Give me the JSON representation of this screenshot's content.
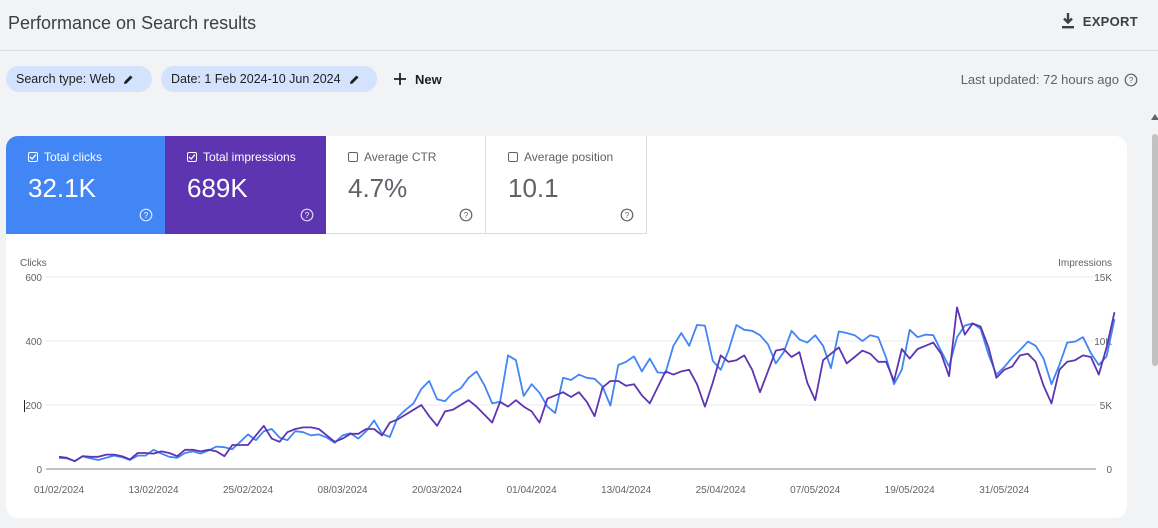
{
  "header": {
    "title": "Performance on Search results",
    "export_label": "EXPORT"
  },
  "filters": {
    "search_type": "Search type: Web",
    "date": "Date: 1 Feb 2024-10 Jun 2024",
    "new_label": "New",
    "last_updated": "Last updated: 72 hours ago"
  },
  "metrics": [
    {
      "label": "Total clicks",
      "value": "32.1K",
      "checked": true
    },
    {
      "label": "Total impressions",
      "value": "689K",
      "checked": true
    },
    {
      "label": "Average CTR",
      "value": "4.7%",
      "checked": false
    },
    {
      "label": "Average position",
      "value": "10.1",
      "checked": false
    }
  ],
  "colors": {
    "clicks": "#4285f4",
    "impressions": "#5e35b1",
    "accent_chip": "#d3e3fd"
  },
  "chart_data": {
    "type": "line",
    "ylabel_left": "Clicks",
    "ylabel_right": "Impressions",
    "y_left_ticks": [
      "0",
      "200",
      "400",
      "600"
    ],
    "y_right_ticks": [
      "0",
      "5K",
      "10K",
      "15K"
    ],
    "ylim_left": [
      0,
      600
    ],
    "ylim_right": [
      0,
      15000
    ],
    "x_ticks": [
      "01/02/2024",
      "13/02/2024",
      "25/02/2024",
      "08/03/2024",
      "20/03/2024",
      "01/04/2024",
      "13/04/2024",
      "25/04/2024",
      "07/05/2024",
      "19/05/2024",
      "31/05/2024"
    ],
    "x_start": "2024-02-01",
    "x_end": "2024-06-10",
    "grid": true,
    "series": [
      {
        "name": "Clicks",
        "axis": "left",
        "values": [
          35,
          33,
          25,
          40,
          33,
          28,
          35,
          42,
          37,
          28,
          42,
          42,
          60,
          48,
          38,
          35,
          50,
          55,
          48,
          58,
          70,
          68,
          62,
          85,
          108,
          90,
          118,
          125,
          98,
          90,
          118,
          115,
          105,
          108,
          98,
          82,
          105,
          112,
          95,
          118,
          152,
          110,
          100,
          162,
          185,
          205,
          250,
          275,
          218,
          212,
          238,
          252,
          285,
          305,
          262,
          205,
          210,
          355,
          340,
          228,
          265,
          238,
          195,
          175,
          285,
          278,
          295,
          285,
          282,
          258,
          198,
          325,
          335,
          352,
          305,
          345,
          302,
          300,
          385,
          425,
          385,
          450,
          448,
          338,
          310,
          370,
          450,
          435,
          432,
          418,
          390,
          330,
          365,
          432,
          405,
          395,
          418,
          385,
          315,
          430,
          425,
          418,
          400,
          418,
          412,
          348,
          265,
          310,
          435,
          412,
          420,
          418,
          368,
          320,
          412,
          448,
          455,
          438,
          358,
          295,
          318,
          348,
          372,
          398,
          385,
          345,
          265,
          325,
          395,
          398,
          412,
          362,
          325,
          352,
          468
        ]
      },
      {
        "name": "Impressions",
        "axis": "right",
        "values": [
          950,
          875,
          600,
          1000,
          950,
          950,
          1125,
          1125,
          1000,
          750,
          1250,
          1250,
          1200,
          1375,
          1250,
          1000,
          1500,
          1500,
          1375,
          1500,
          1375,
          1000,
          1875,
          1875,
          1875,
          2625,
          3375,
          2375,
          2125,
          2875,
          3125,
          3250,
          3250,
          3125,
          2625,
          2125,
          2375,
          2750,
          2750,
          3125,
          3125,
          2625,
          3625,
          3875,
          4250,
          4625,
          5000,
          4125,
          3375,
          4500,
          4625,
          5000,
          5375,
          4875,
          4250,
          3625,
          5250,
          4875,
          5375,
          4875,
          4500,
          3625,
          5500,
          5750,
          6000,
          5625,
          6000,
          5250,
          4125,
          6375,
          6875,
          6875,
          6500,
          6625,
          5750,
          5125,
          6375,
          7625,
          7375,
          7625,
          7750,
          6625,
          4875,
          6750,
          8875,
          8375,
          8500,
          8875,
          7750,
          6000,
          7625,
          9250,
          9375,
          8750,
          9125,
          6750,
          5375,
          8500,
          9000,
          9500,
          8250,
          8750,
          9250,
          9000,
          8375,
          8375,
          6875,
          9375,
          8625,
          9375,
          9625,
          9875,
          9000,
          7250,
          12625,
          10500,
          11375,
          11125,
          9500,
          7125,
          7750,
          8000,
          8875,
          9000,
          8375,
          6500,
          5125,
          7750,
          8375,
          8500,
          8875,
          8750,
          7375,
          9500,
          12250
        ]
      }
    ]
  }
}
